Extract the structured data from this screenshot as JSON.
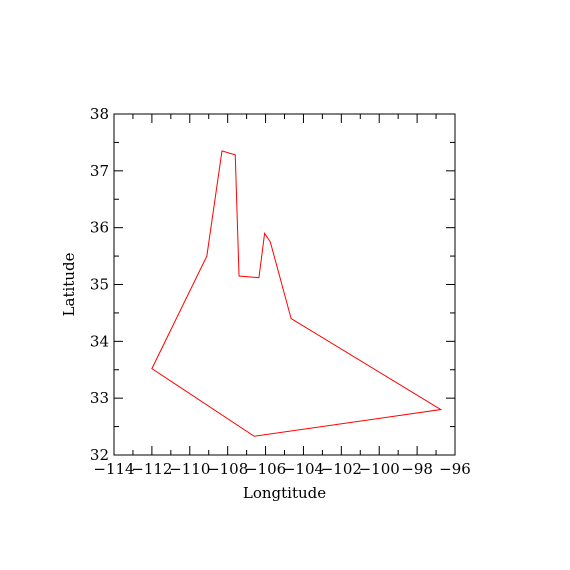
{
  "chart_data": {
    "type": "line",
    "title": "",
    "xlabel": "Longtitude",
    "ylabel": "Latitude",
    "xlim": [
      -114,
      -96
    ],
    "ylim": [
      32,
      38
    ],
    "xticks": [
      -114,
      -112,
      -110,
      -108,
      -106,
      -104,
      -102,
      -100,
      -98,
      -96
    ],
    "xtick_labels": [
      "−114",
      "−112",
      "−110",
      "−108",
      "−106",
      "−104",
      "−102",
      "−100",
      "−98",
      "−96"
    ],
    "yticks": [
      32,
      33,
      34,
      35,
      36,
      37,
      38
    ],
    "ytick_labels": [
      "32",
      "33",
      "34",
      "35",
      "36",
      "37",
      "38"
    ],
    "grid": false,
    "series": [
      {
        "color": "#ff0000",
        "x": [
          -105.75,
          -106.05,
          -106.35,
          -107.4,
          -107.6,
          -108.3,
          -109.1,
          -112.0,
          -106.6,
          -96.75,
          -104.65,
          -105.75
        ],
        "y": [
          35.75,
          35.9,
          35.12,
          35.15,
          37.28,
          37.35,
          35.5,
          33.52,
          32.33,
          32.8,
          34.4,
          35.75
        ]
      }
    ]
  }
}
